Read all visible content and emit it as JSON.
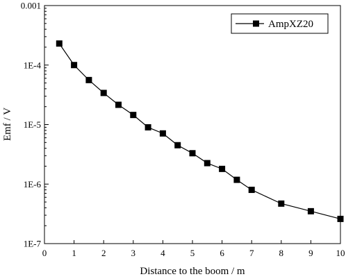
{
  "chart_data": {
    "type": "line",
    "xlabel": "Distance to the boom / m",
    "ylabel": "Emf / V",
    "xlim": [
      0,
      10
    ],
    "ylim": [
      1e-07,
      0.001
    ],
    "yscale": "log",
    "grid": false,
    "legend_position": "top-right",
    "x_ticks": [
      0,
      1,
      2,
      3,
      4,
      5,
      6,
      7,
      8,
      9,
      10
    ],
    "x_tick_labels": [
      "0",
      "1",
      "2",
      "3",
      "4",
      "5",
      "6",
      "7",
      "8",
      "9",
      "10"
    ],
    "y_ticks": [
      1e-07,
      1e-06,
      1e-05,
      0.0001,
      0.001
    ],
    "y_tick_labels": [
      "1E-7",
      "1E-6",
      "1E-5",
      "1E-4",
      "0.001"
    ],
    "series": [
      {
        "name": "AmpXZ20",
        "color": "#000000",
        "marker": "square",
        "x": [
          0.5,
          1,
          1.5,
          2,
          2.5,
          3,
          3.5,
          4,
          4.5,
          5,
          5.5,
          6,
          6.5,
          7,
          8,
          9,
          10
        ],
        "y": [
          0.00023,
          0.0001,
          5.6e-05,
          3.4e-05,
          2.15e-05,
          1.45e-05,
          9e-06,
          7.1e-06,
          4.5e-06,
          3.3e-06,
          2.25e-06,
          1.8e-06,
          1.18e-06,
          8e-07,
          4.7e-07,
          3.5e-07,
          2.6e-07
        ]
      }
    ]
  }
}
